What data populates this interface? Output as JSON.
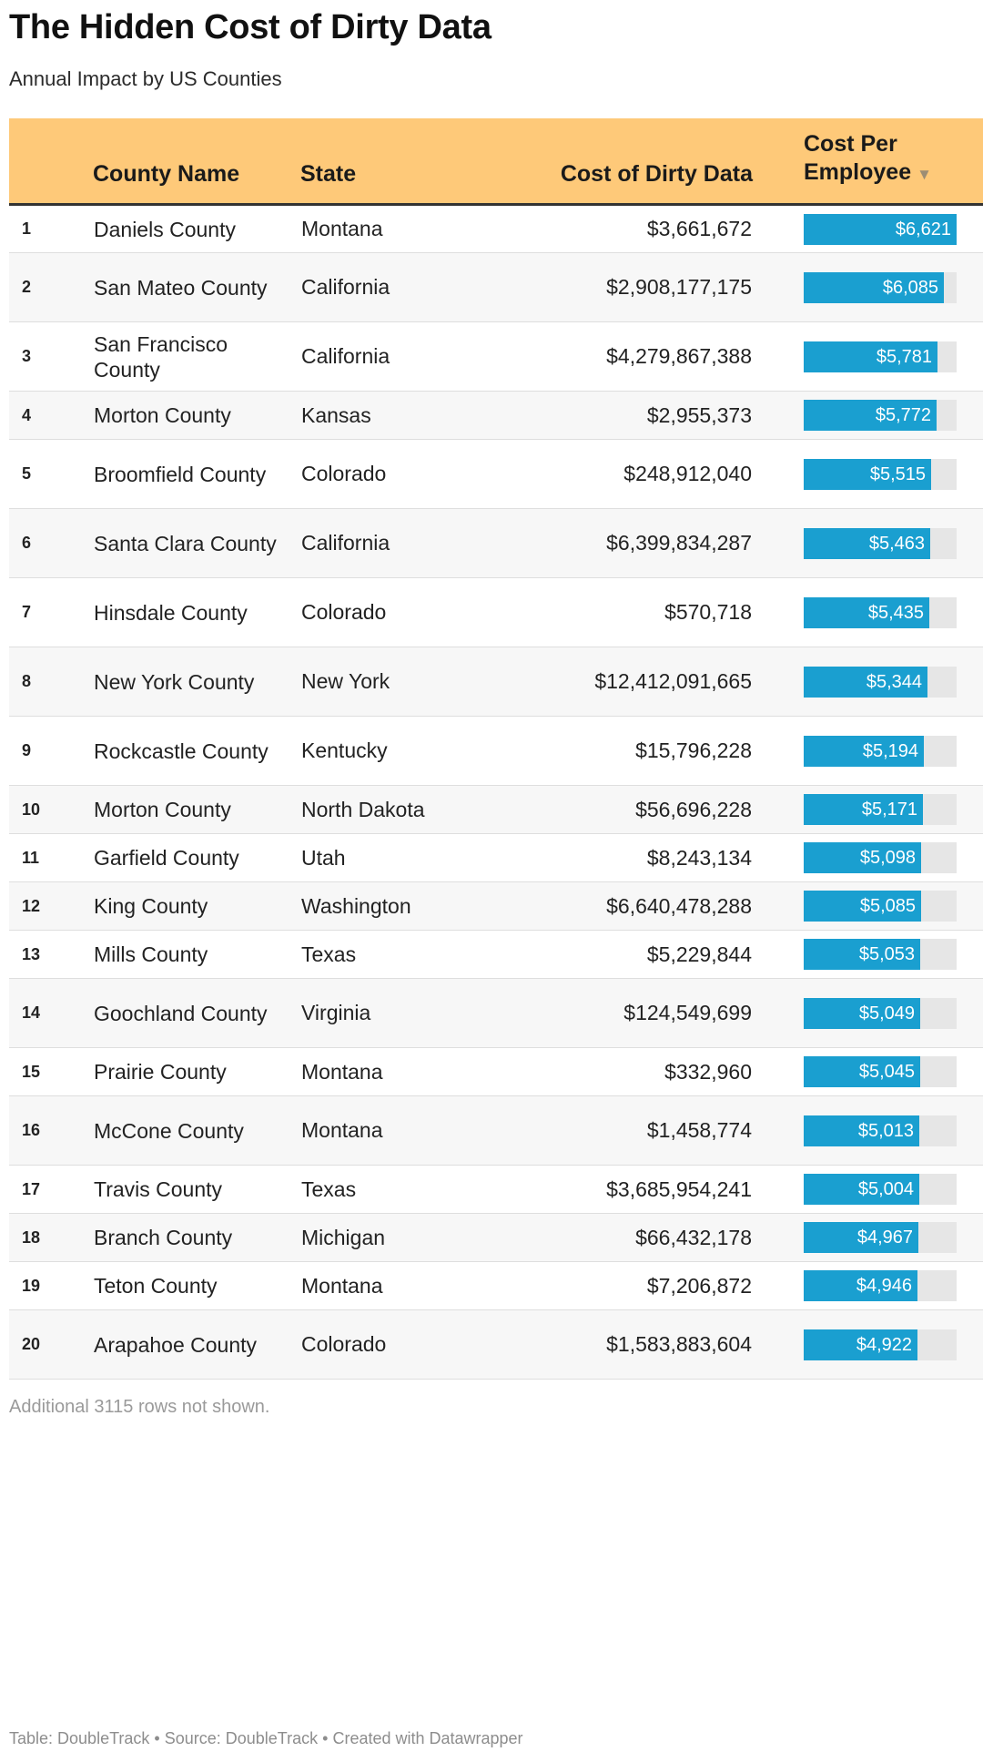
{
  "title": "The Hidden Cost of Dirty Data",
  "subtitle": "Annual Impact by US Counties",
  "header": {
    "rank": "",
    "county": "County Name",
    "state": "State",
    "cost": "Cost of Dirty Data",
    "per_employee_line1": "Cost Per",
    "per_employee_line2": "Employee",
    "sort_indicator": "▼"
  },
  "colors": {
    "header_bg": "#fec979",
    "bar": "#1a9fd0",
    "bar_track": "#e6e6e6"
  },
  "chart_data": {
    "type": "table",
    "columns": [
      "",
      "County Name",
      "State",
      "Cost of Dirty Data",
      "Cost Per Employee"
    ],
    "bar_column_max": 6621,
    "rows": [
      {
        "rank": "1",
        "county": "Daniels County",
        "state": "Montana",
        "cost": "$3,661,672",
        "per_employee": 6621,
        "per_employee_label": "$6,621"
      },
      {
        "rank": "2",
        "county": "San Mateo County",
        "state": "California",
        "cost": "$2,908,177,175",
        "per_employee": 6085,
        "per_employee_label": "$6,085"
      },
      {
        "rank": "3",
        "county": "San Francisco County",
        "state": "California",
        "cost": "$4,279,867,388",
        "per_employee": 5781,
        "per_employee_label": "$5,781"
      },
      {
        "rank": "4",
        "county": "Morton County",
        "state": "Kansas",
        "cost": "$2,955,373",
        "per_employee": 5772,
        "per_employee_label": "$5,772"
      },
      {
        "rank": "5",
        "county": "Broomfield County",
        "state": "Colorado",
        "cost": "$248,912,040",
        "per_employee": 5515,
        "per_employee_label": "$5,515"
      },
      {
        "rank": "6",
        "county": "Santa Clara County",
        "state": "California",
        "cost": "$6,399,834,287",
        "per_employee": 5463,
        "per_employee_label": "$5,463"
      },
      {
        "rank": "7",
        "county": "Hinsdale County",
        "state": "Colorado",
        "cost": "$570,718",
        "per_employee": 5435,
        "per_employee_label": "$5,435"
      },
      {
        "rank": "8",
        "county": "New York County",
        "state": "New York",
        "cost": "$12,412,091,665",
        "per_employee": 5344,
        "per_employee_label": "$5,344"
      },
      {
        "rank": "9",
        "county": "Rockcastle County",
        "state": "Kentucky",
        "cost": "$15,796,228",
        "per_employee": 5194,
        "per_employee_label": "$5,194"
      },
      {
        "rank": "10",
        "county": "Morton County",
        "state": "North Dakota",
        "cost": "$56,696,228",
        "per_employee": 5171,
        "per_employee_label": "$5,171"
      },
      {
        "rank": "11",
        "county": "Garfield County",
        "state": "Utah",
        "cost": "$8,243,134",
        "per_employee": 5098,
        "per_employee_label": "$5,098"
      },
      {
        "rank": "12",
        "county": "King County",
        "state": "Washington",
        "cost": "$6,640,478,288",
        "per_employee": 5085,
        "per_employee_label": "$5,085"
      },
      {
        "rank": "13",
        "county": "Mills County",
        "state": "Texas",
        "cost": "$5,229,844",
        "per_employee": 5053,
        "per_employee_label": "$5,053"
      },
      {
        "rank": "14",
        "county": "Goochland County",
        "state": "Virginia",
        "cost": "$124,549,699",
        "per_employee": 5049,
        "per_employee_label": "$5,049"
      },
      {
        "rank": "15",
        "county": "Prairie County",
        "state": "Montana",
        "cost": "$332,960",
        "per_employee": 5045,
        "per_employee_label": "$5,045"
      },
      {
        "rank": "16",
        "county": "McCone County",
        "state": "Montana",
        "cost": "$1,458,774",
        "per_employee": 5013,
        "per_employee_label": "$5,013"
      },
      {
        "rank": "17",
        "county": "Travis County",
        "state": "Texas",
        "cost": "$3,685,954,241",
        "per_employee": 5004,
        "per_employee_label": "$5,004"
      },
      {
        "rank": "18",
        "county": "Branch County",
        "state": "Michigan",
        "cost": "$66,432,178",
        "per_employee": 4967,
        "per_employee_label": "$4,967"
      },
      {
        "rank": "19",
        "county": "Teton County",
        "state": "Montana",
        "cost": "$7,206,872",
        "per_employee": 4946,
        "per_employee_label": "$4,946"
      },
      {
        "rank": "20",
        "county": "Arapahoe County",
        "state": "Colorado",
        "cost": "$1,583,883,604",
        "per_employee": 4922,
        "per_employee_label": "$4,922"
      }
    ]
  },
  "note": "Additional 3115 rows not shown.",
  "footer": {
    "table": "Table: DoubleTrack",
    "source": "Source: DoubleTrack",
    "created": "Created with Datawrapper",
    "separator": "•"
  }
}
